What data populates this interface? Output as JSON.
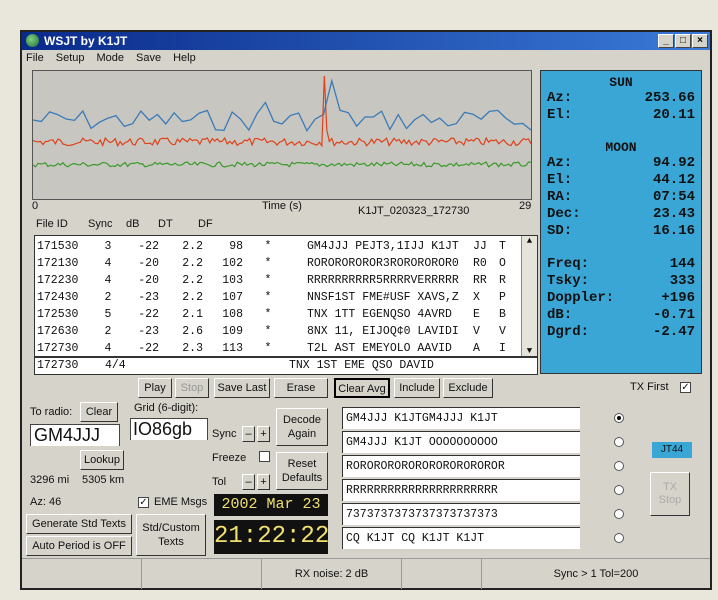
{
  "window": {
    "title": "WSJT  by K1JT",
    "minimize": "_",
    "maximize": "□",
    "close": "×"
  },
  "menu": [
    "File",
    "Setup",
    "Mode",
    "Save",
    "Help"
  ],
  "graph": {
    "x_start": "0",
    "x_label": "Time (s)",
    "x_end": "29",
    "file_label": "K1JT_020323_172730",
    "colors": {
      "blue": "#3a7ab8",
      "red": "#e0401a",
      "green": "#3a9a2a"
    }
  },
  "table": {
    "headers": [
      "File ID",
      "Sync",
      "dB",
      "DT",
      "DF"
    ],
    "rows": [
      [
        "171530",
        "3",
        "-22",
        "2.2",
        "98",
        "*",
        "GM4JJJ PEJT3,1IJJ K1JT",
        "JJ",
        "T"
      ],
      [
        "172130",
        "4",
        "-20",
        "2.2",
        "102",
        "*",
        "ROROROROROR3ROROROROR0",
        "R0",
        "O"
      ],
      [
        "172230",
        "4",
        "-20",
        "2.2",
        "103",
        "*",
        "RRRRRRRRRR5RRRRVERRRRR",
        "RR",
        "R"
      ],
      [
        "172430",
        "2",
        "-23",
        "2.2",
        "107",
        "*",
        "NNSF1ST FME#USF XAVS,Z",
        "X",
        "P"
      ],
      [
        "172530",
        "5",
        "-22",
        "2.1",
        "108",
        "*",
        "TNX 1TT EGENQSO 4AVRD",
        "E",
        "B"
      ],
      [
        "172630",
        "2",
        "-23",
        "2.6",
        "109",
        "*",
        "8NX 11, EIJOQ¢0 LAVIDI",
        "V",
        "V"
      ],
      [
        "172730",
        "4",
        "-22",
        "2.3",
        "113",
        "*",
        "T2L AST EMEYOLO AAVID",
        "A",
        "I"
      ]
    ],
    "average": {
      "id": "172730",
      "count": "4/4",
      "text": "TNX 1ST EME QSO DAVID"
    }
  },
  "astro": {
    "sun": {
      "title": "SUN",
      "rows": [
        [
          "Az:",
          "253.66"
        ],
        [
          "El:",
          "20.11"
        ]
      ]
    },
    "moon": {
      "title": "MOON",
      "rows": [
        [
          "Az:",
          "94.92"
        ],
        [
          "El:",
          "44.12"
        ],
        [
          "RA:",
          "07:54"
        ],
        [
          "Dec:",
          "23.43"
        ],
        [
          "SD:",
          "16.16"
        ]
      ]
    },
    "misc": [
      [
        "Freq:",
        "144"
      ],
      [
        "Tsky:",
        "333"
      ],
      [
        "Doppler:",
        "+196"
      ],
      [
        "dB:",
        "-0.71"
      ],
      [
        "Dgrd:",
        "-2.47"
      ]
    ]
  },
  "buttons": {
    "play": "Play",
    "stop": "Stop",
    "save_last": "Save Last",
    "erase": "Erase",
    "clear_avg": "Clear Avg",
    "include": "Include",
    "exclude": "Exclude",
    "tx_first": "TX First",
    "clear": "Clear",
    "lookup": "Lookup",
    "decode_again": "Decode Again",
    "reset_defaults": "Reset Defaults",
    "generate": "Generate Std Texts",
    "auto_period": "Auto Period is OFF",
    "std_custom": "Std/Custom Texts",
    "mode": "JT44",
    "tx_stop": "TX Stop"
  },
  "station": {
    "to_radio_label": "To radio:",
    "to_radio": "GM4JJJ",
    "grid_label": "Grid (6-digit):",
    "grid": "IO86gb",
    "distance_mi": "3296 mi",
    "distance_km": "5305 km",
    "az": "Az: 46",
    "eme_msgs": "EME Msgs",
    "sync_label": "Sync",
    "tol_label": "Tol",
    "freeze_label": "Freeze",
    "minus": "–",
    "plus": "+"
  },
  "clock": {
    "date": "2002 Mar 23",
    "time": "21:22:22"
  },
  "messages": [
    "GM4JJJ K1JTGM4JJJ K1JT",
    "GM4JJJ K1JT OOOOOOOOOO",
    "ROROROROROROROROROROROR",
    "RRRRRRRRRRRRRRRRRRRRRR",
    "7373737373737373737373",
    "CQ K1JT CQ K1JT K1JT"
  ],
  "selected_message": 0,
  "status": {
    "rx_noise": "RX noise: 2 dB",
    "sync_tol": "Sync > 1   Tol=200"
  }
}
